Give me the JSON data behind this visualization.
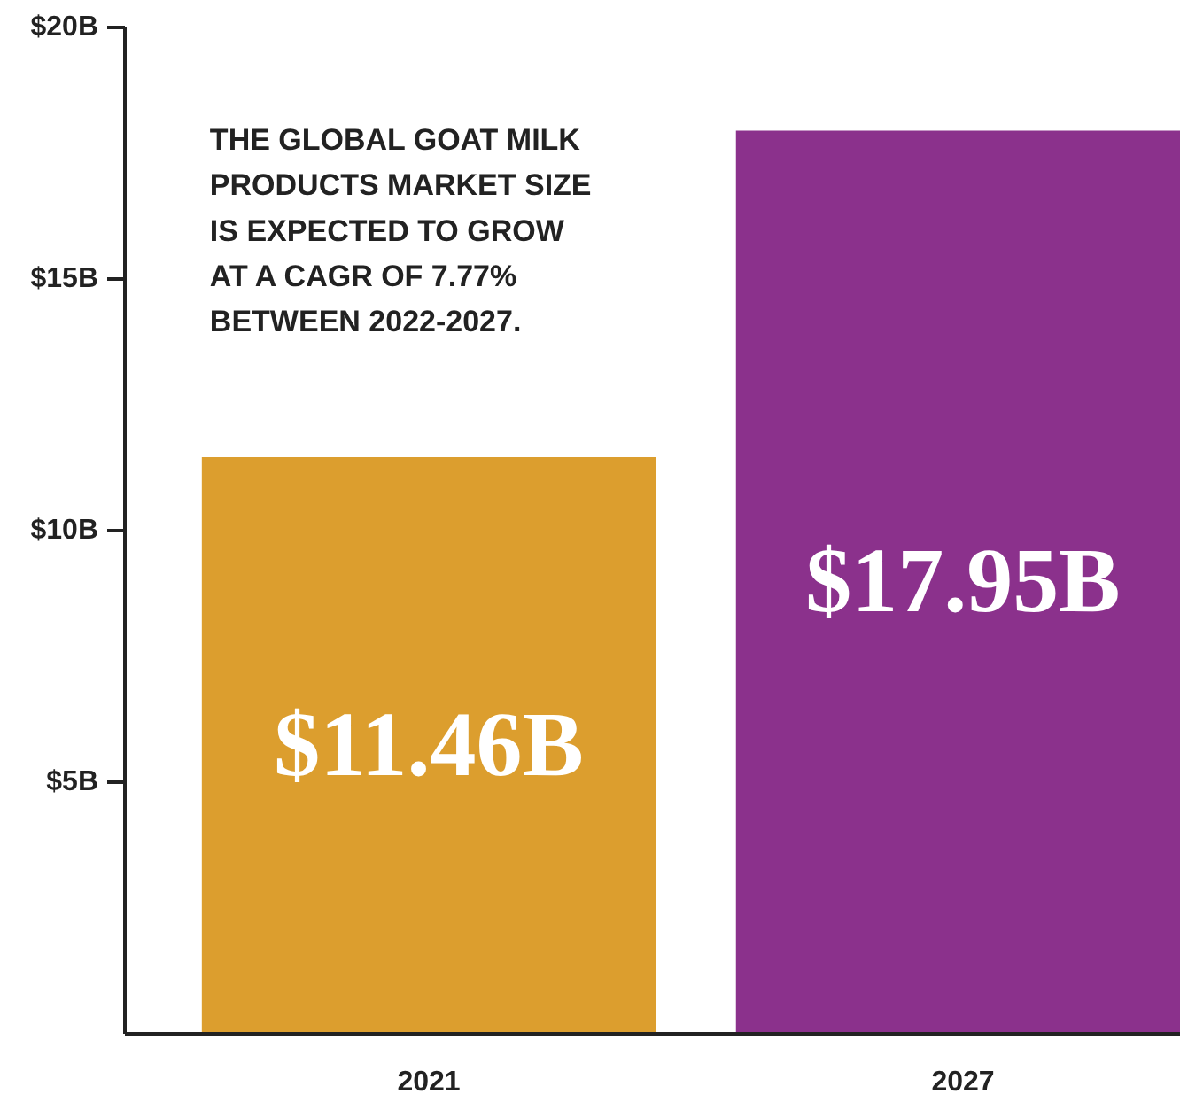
{
  "chart_data": {
    "type": "bar",
    "categories": [
      "2021",
      "2027"
    ],
    "values": [
      11.46,
      17.95
    ],
    "colors": [
      "#dc9e2e",
      "#8b318c"
    ],
    "value_labels": [
      "$11.46B",
      "$17.95B"
    ],
    "ylim": [
      0,
      20
    ],
    "yticks": [
      {
        "value": 5,
        "label": "$5B"
      },
      {
        "value": 10,
        "label": "$10B"
      },
      {
        "value": 15,
        "label": "$15B"
      },
      {
        "value": 20,
        "label": "$20B"
      }
    ],
    "grid": false,
    "annotations": [
      "THE GLOBAL GOAT MILK PRODUCTS MARKET SIZE IS EXPECTED TO GROW AT A CAGR OF 7.77% BETWEEN 2022-2027."
    ]
  }
}
